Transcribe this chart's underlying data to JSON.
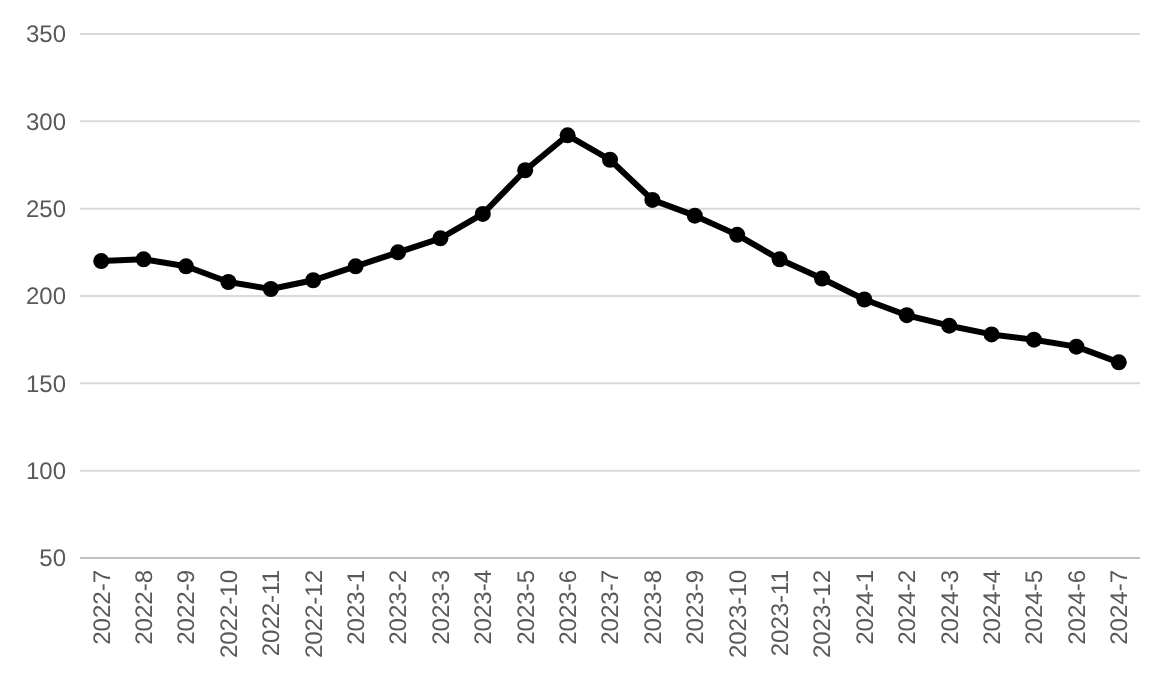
{
  "chart_data": {
    "type": "line",
    "categories": [
      "2022-7",
      "2022-8",
      "2022-9",
      "2022-10",
      "2022-11",
      "2022-12",
      "2023-1",
      "2023-2",
      "2023-3",
      "2023-4",
      "2023-5",
      "2023-6",
      "2023-7",
      "2023-8",
      "2023-9",
      "2023-10",
      "2023-11",
      "2023-12",
      "2024-1",
      "2024-2",
      "2024-3",
      "2024-4",
      "2024-5",
      "2024-6",
      "2024-7"
    ],
    "series": [
      {
        "color": "#000000",
        "values": [
          220,
          221,
          217,
          208,
          204,
          209,
          217,
          225,
          233,
          247,
          272,
          292,
          278,
          255,
          246,
          235,
          221,
          210,
          198,
          189,
          183,
          178,
          175,
          171,
          162
        ]
      }
    ],
    "ylim": [
      50,
      350
    ],
    "yticks": [
      50,
      100,
      150,
      200,
      250,
      300,
      350
    ],
    "grid": "y",
    "marker": "circle",
    "line_style": "solid"
  }
}
